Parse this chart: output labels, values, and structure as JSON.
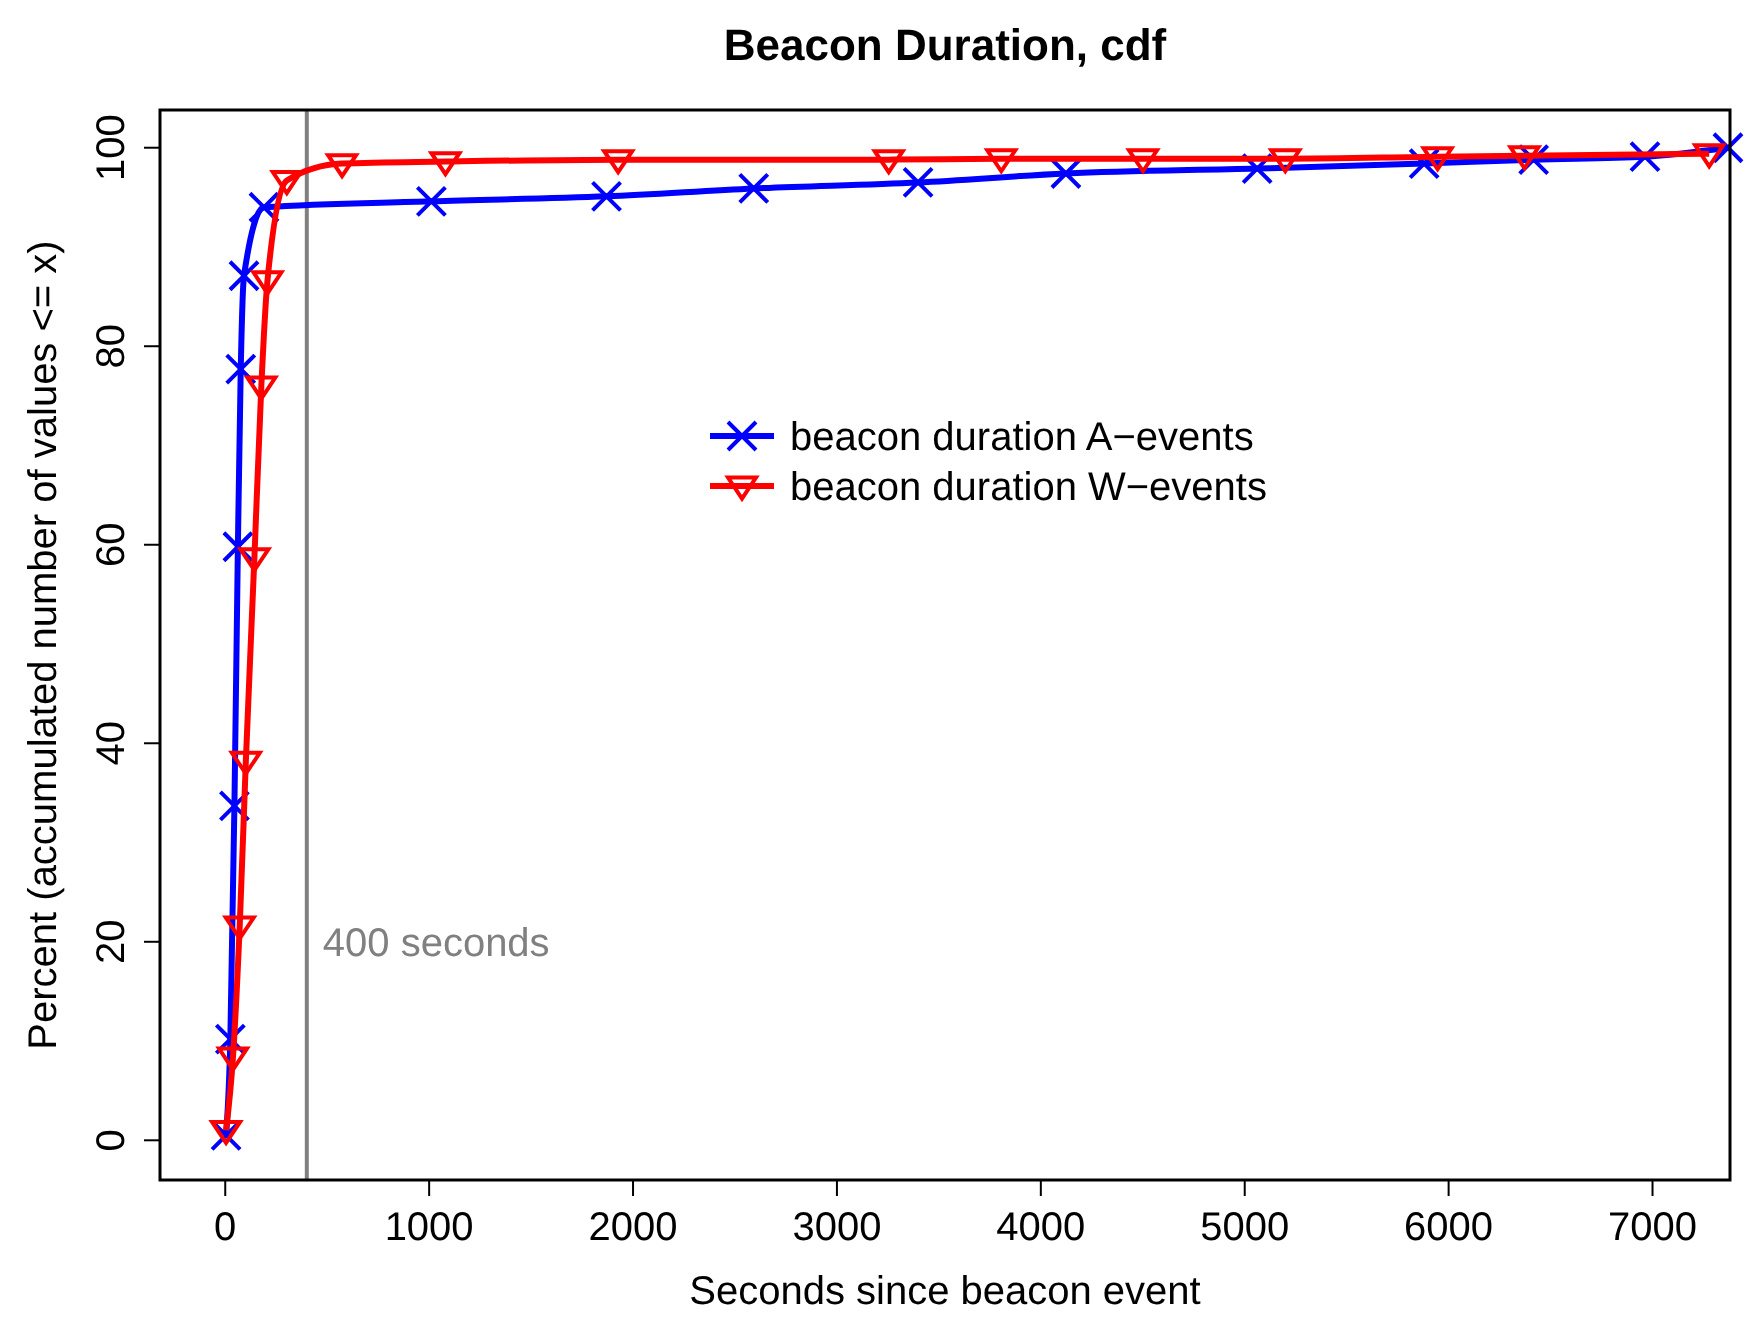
{
  "chart_data": {
    "type": "line",
    "title": "Beacon Duration, cdf",
    "xlabel": "Seconds since beacon event",
    "ylabel": "Percent (accumulated number of values <= x)",
    "xlim": [
      -320,
      7380
    ],
    "ylim": [
      -4,
      103.8
    ],
    "xticks": [
      0,
      1000,
      2000,
      3000,
      4000,
      5000,
      6000,
      7000
    ],
    "yticks": [
      0,
      20,
      40,
      60,
      80,
      100
    ],
    "grid": false,
    "legend": "top right",
    "series": [
      {
        "name": "beacon duration A−events",
        "color": "#0000ff",
        "marker": "cross",
        "x": [
          4,
          25,
          45,
          62,
          76,
          92,
          190,
          1011,
          1870,
          2592,
          3398,
          4123,
          5061,
          5880,
          6417,
          6963,
          7370
        ],
        "values": [
          0.5,
          10.2,
          33.7,
          59.8,
          77.7,
          87.1,
          94,
          94.6,
          95.1,
          95.9,
          96.5,
          97.4,
          97.9,
          98.4,
          98.8,
          99.1,
          100
        ]
      },
      {
        "name": "beacon duration W−events",
        "color": "#ff0000",
        "marker": "triangle",
        "x": [
          4,
          38,
          71,
          101,
          143,
          177,
          207,
          302,
          573,
          1080,
          1927,
          3254,
          3806,
          4501,
          5199,
          5946,
          6372,
          7278
        ],
        "values": [
          1,
          8.4,
          21.6,
          38.2,
          58.7,
          76,
          86.6,
          96.7,
          98.4,
          98.6,
          98.8,
          98.8,
          98.9,
          98.9,
          98.9,
          99.1,
          99.2,
          99.4
        ]
      }
    ],
    "ref_lines": [
      {
        "axis": "x",
        "value": 400,
        "label": "400 seconds",
        "color": "#808080"
      }
    ]
  }
}
